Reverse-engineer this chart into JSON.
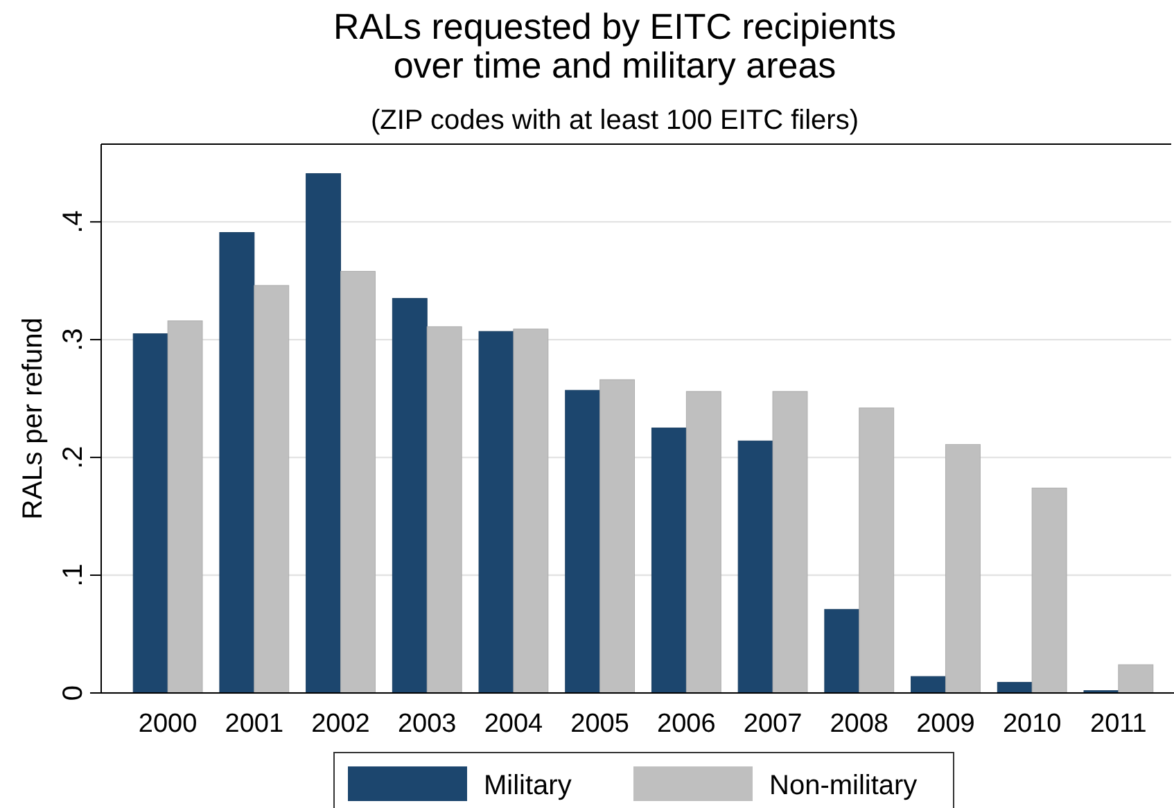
{
  "chart_data": {
    "type": "bar",
    "title": "RALs requested by EITC recipients\nover time and military areas",
    "subtitle": "(ZIP codes with at least 100 EITC filers)",
    "ylabel": "RALs per refund",
    "categories": [
      "2000",
      "2001",
      "2002",
      "2003",
      "2004",
      "2005",
      "2006",
      "2007",
      "2008",
      "2009",
      "2010",
      "2011"
    ],
    "series": [
      {
        "name": "Military",
        "color": "#1c466e",
        "values": [
          0.305,
          0.391,
          0.441,
          0.335,
          0.307,
          0.257,
          0.225,
          0.214,
          0.071,
          0.014,
          0.009,
          0.002
        ]
      },
      {
        "name": "Non-military",
        "color": "#bfbfbf",
        "values": [
          0.316,
          0.346,
          0.358,
          0.311,
          0.309,
          0.266,
          0.256,
          0.256,
          0.242,
          0.211,
          0.174,
          0.024
        ]
      }
    ],
    "ylim": [
      0,
      0.466
    ],
    "yticks": [
      {
        "value": 0,
        "label": "0"
      },
      {
        "value": 0.1,
        "label": ".1"
      },
      {
        "value": 0.2,
        "label": ".2"
      },
      {
        "value": 0.3,
        "label": ".3"
      },
      {
        "value": 0.4,
        "label": ".4"
      }
    ],
    "grid": "y",
    "legend": "bottom"
  }
}
